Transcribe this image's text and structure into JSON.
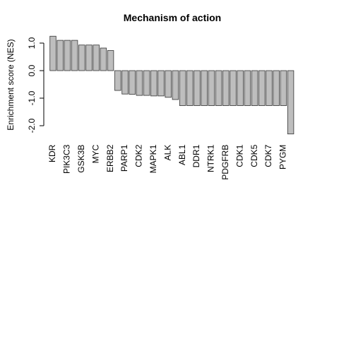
{
  "chart_data": {
    "type": "bar",
    "title": "Mechanism of action",
    "y_label": "Enrichment score  (NES)",
    "categories": [
      "KDR",
      null,
      "PIK3C3",
      null,
      "GSK3B",
      null,
      "MYC",
      null,
      "ERBB2",
      null,
      "PARP1",
      null,
      "CDK2",
      null,
      "MAPK1",
      null,
      "ALK",
      null,
      "ABL1",
      null,
      "DDR1",
      null,
      "NTRK1",
      null,
      "PDGFRB",
      null,
      "CDK1",
      null,
      "CDK5",
      null,
      "CDK7",
      null,
      "PYGM",
      null
    ],
    "values": [
      1.25,
      1.1,
      1.1,
      1.1,
      0.93,
      0.93,
      0.93,
      0.82,
      0.73,
      -0.72,
      -0.85,
      -0.86,
      -0.9,
      -0.9,
      -0.92,
      -0.92,
      -0.97,
      -1.05,
      -1.27,
      -1.27,
      -1.27,
      -1.27,
      -1.27,
      -1.27,
      -1.27,
      -1.27,
      -1.27,
      -1.27,
      -1.27,
      -1.27,
      -1.27,
      -1.27,
      -1.27,
      -2.3
    ],
    "color": "#bebebe",
    "ylim": [
      -2.3,
      1.25
    ],
    "yticks": [
      {
        "value": -2,
        "label": "-2.0"
      },
      {
        "value": -1,
        "label": "-1.0"
      },
      {
        "value": 0,
        "label": "0.0"
      },
      {
        "value": 1,
        "label": "1.0"
      }
    ]
  }
}
